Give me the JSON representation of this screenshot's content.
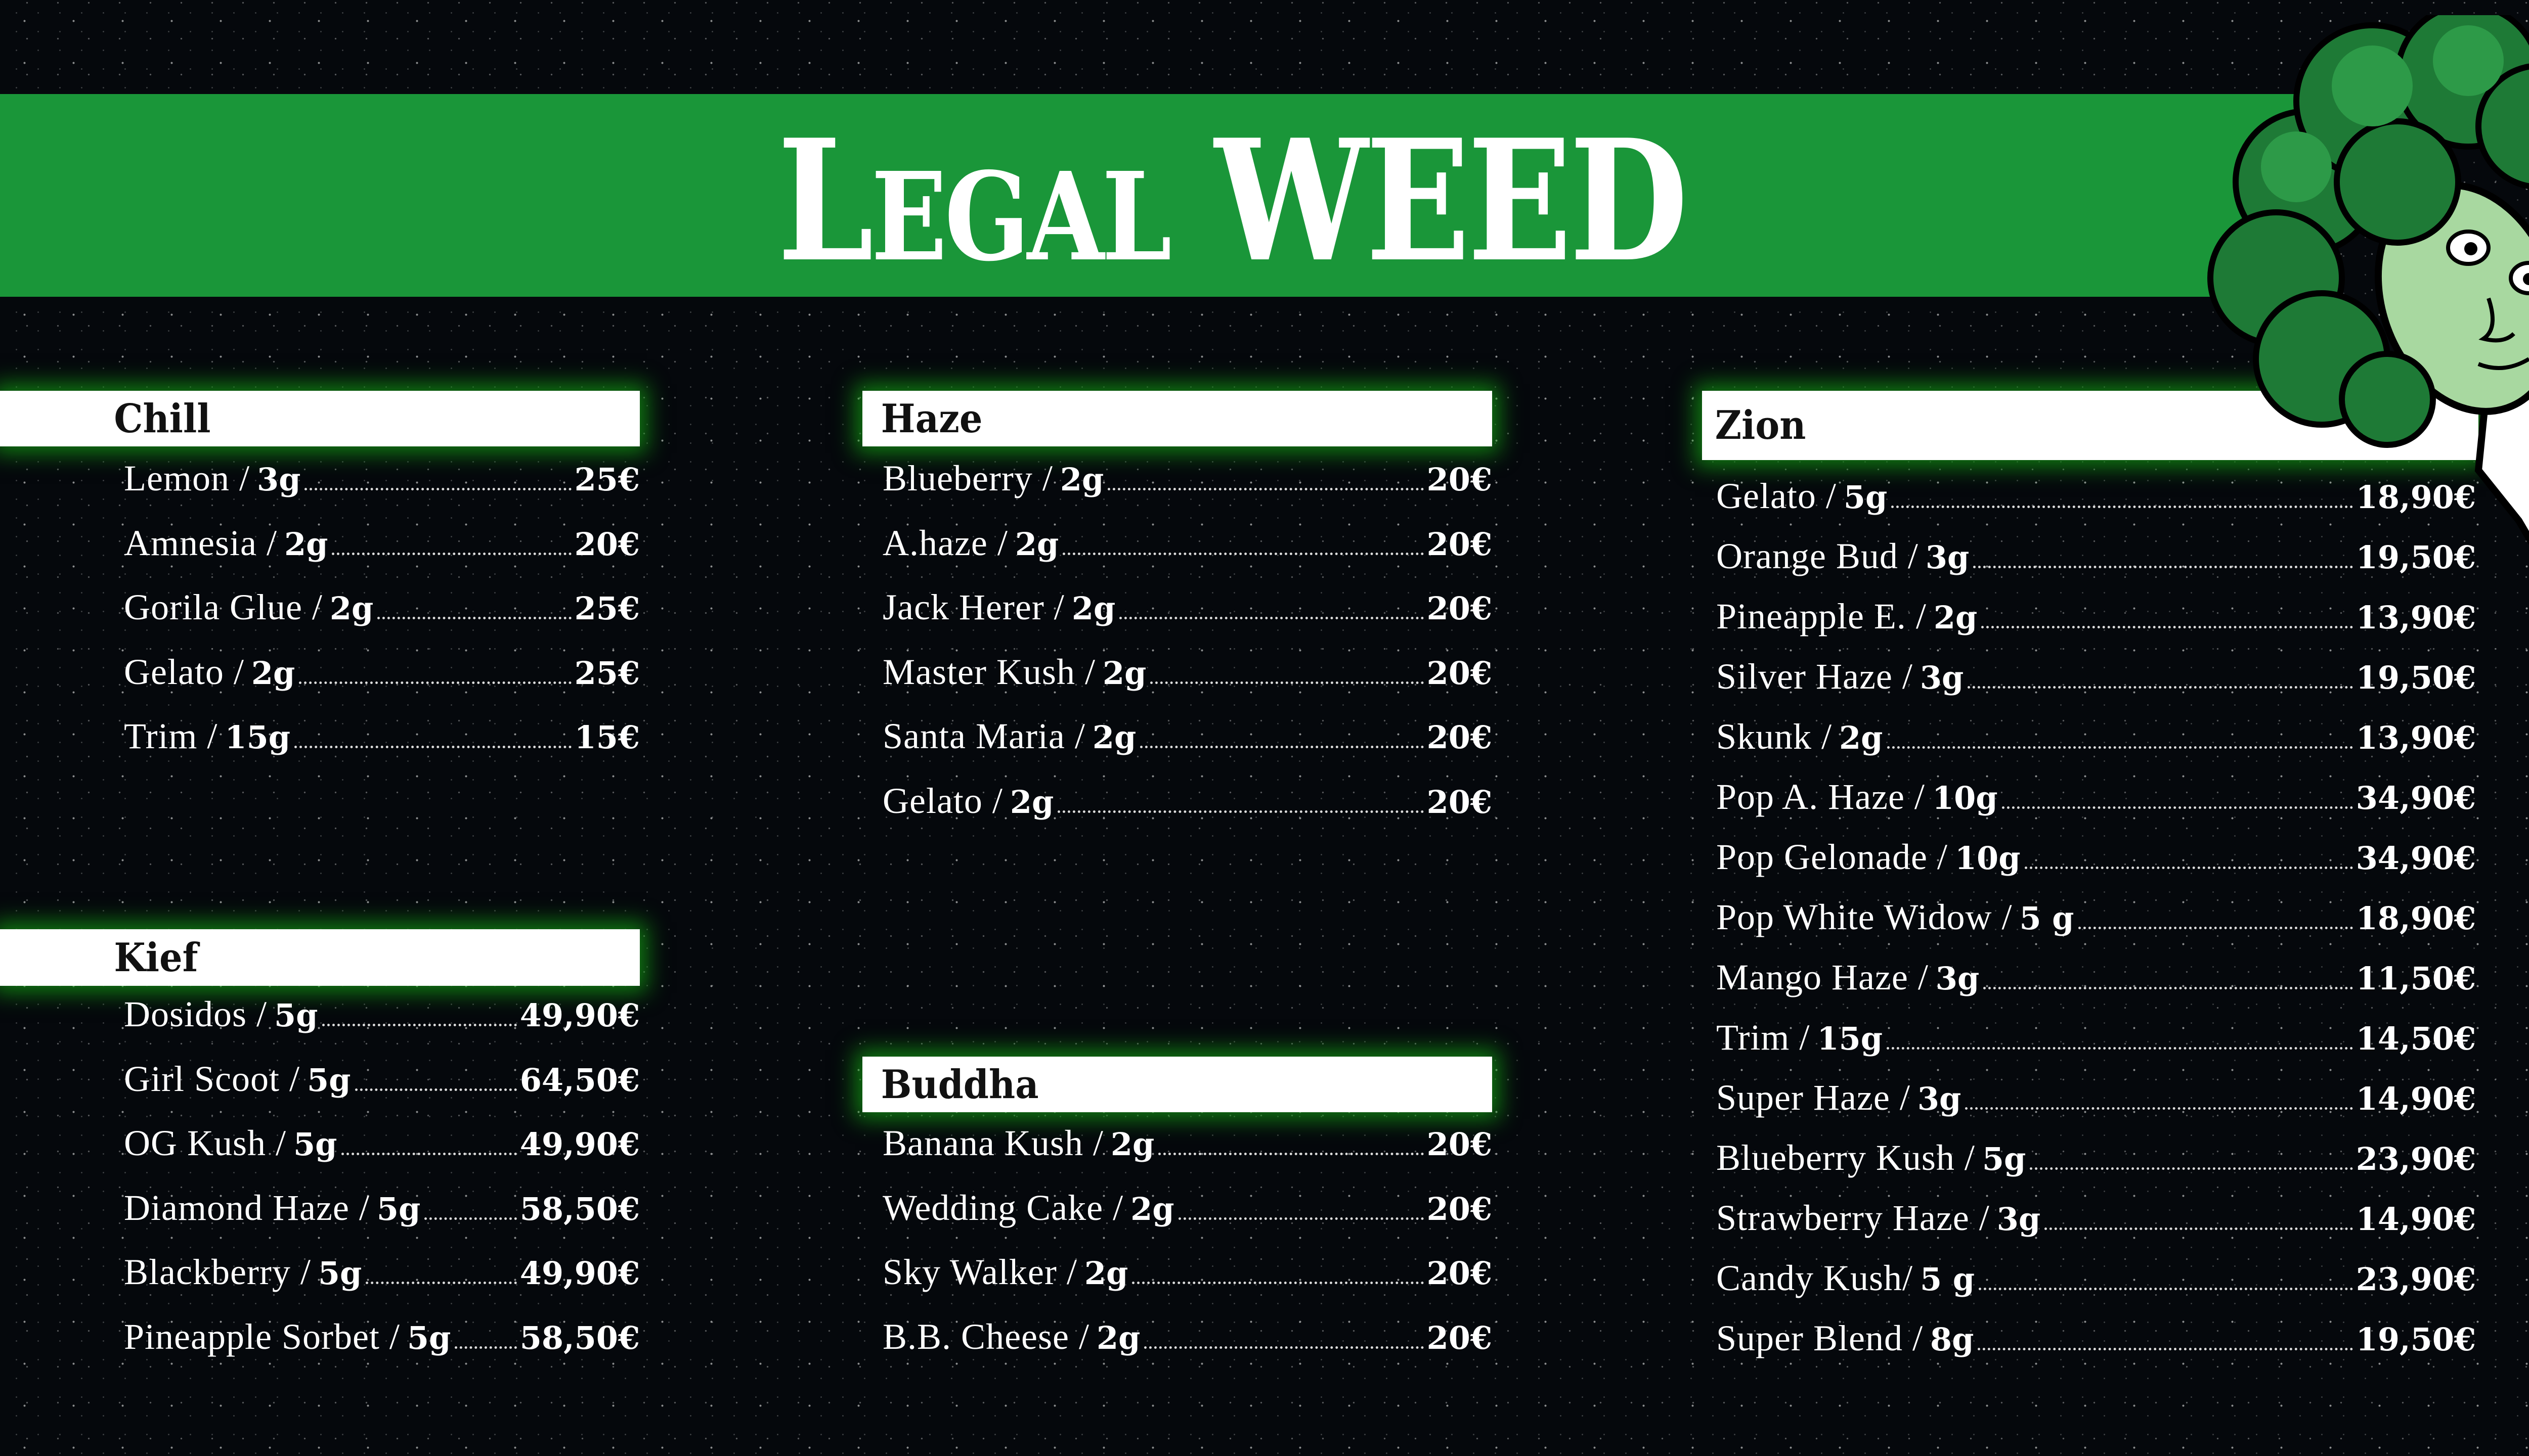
{
  "header": {
    "title_first": "L",
    "title_caps": "EGAL",
    "title_second": "WEED",
    "banner_color": "#1a9639"
  },
  "sections": {
    "chill": {
      "title": "Chill",
      "items": [
        {
          "name": "Lemon /",
          "weight": "3g",
          "price": "25€"
        },
        {
          "name": "Amnesia /",
          "weight": "2g",
          "price": "20€"
        },
        {
          "name": "Gorila Glue /",
          "weight": "2g",
          "price": "25€"
        },
        {
          "name": "Gelato /",
          "weight": "2g",
          "price": "25€"
        },
        {
          "name": "Trim /",
          "weight": "15g",
          "price": "15€"
        }
      ]
    },
    "kief": {
      "title": "Kief",
      "items": [
        {
          "name": "Dosidos /",
          "weight": "5g",
          "price": "49,90€"
        },
        {
          "name": "Girl Scoot /",
          "weight": "5g",
          "price": "64,50€"
        },
        {
          "name": "OG Kush /",
          "weight": "5g",
          "price": "49,90€"
        },
        {
          "name": "Diamond Haze /",
          "weight": "5g",
          "price": "58,50€"
        },
        {
          "name": "Blackberry /",
          "weight": "5g",
          "price": "49,90€"
        },
        {
          "name": "Pineapple Sorbet /",
          "weight": "5g",
          "price": "58,50€"
        }
      ]
    },
    "haze": {
      "title": "Haze",
      "items": [
        {
          "name": "Blueberry /",
          "weight": "2g",
          "price": "20€"
        },
        {
          "name": "A.haze /",
          "weight": "2g",
          "price": "20€"
        },
        {
          "name": "Jack Herer /",
          "weight": "2g",
          "price": "20€"
        },
        {
          "name": "Master Kush /",
          "weight": "2g",
          "price": "20€"
        },
        {
          "name": "Santa Maria /",
          "weight": "2g",
          "price": "20€"
        },
        {
          "name": "Gelato /",
          "weight": "2g",
          "price": "20€"
        }
      ]
    },
    "buddha": {
      "title": "Buddha",
      "items": [
        {
          "name": "Banana Kush /",
          "weight": "2g",
          "price": "20€"
        },
        {
          "name": "Wedding Cake /",
          "weight": "2g",
          "price": "20€"
        },
        {
          "name": "Sky Walker /",
          "weight": "2g",
          "price": "20€"
        },
        {
          "name": "B.B. Cheese /",
          "weight": "2g",
          "price": "20€"
        }
      ]
    },
    "zion": {
      "title": "Zion",
      "items": [
        {
          "name": "Gelato /",
          "weight": "5g",
          "price": "18,90€"
        },
        {
          "name": "Orange Bud /",
          "weight": "3g",
          "price": "19,50€"
        },
        {
          "name": "Pineapple E. /",
          "weight": "2g",
          "price": "13,90€"
        },
        {
          "name": "Silver Haze /",
          "weight": "3g",
          "price": "19,50€"
        },
        {
          "name": "Skunk /",
          "weight": "2g",
          "price": "13,90€"
        },
        {
          "name": "Pop A. Haze /",
          "weight": "10g",
          "price": "34,90€"
        },
        {
          "name": "Pop Gelonade /",
          "weight": "10g",
          "price": "34,90€"
        },
        {
          "name": "Pop White Widow /",
          "weight": "5 g",
          "price": "18,90€"
        },
        {
          "name": "Mango Haze /",
          "weight": "3g",
          "price": "11,50€"
        },
        {
          "name": "Trim /",
          "weight": "15g",
          "price": "14,50€"
        },
        {
          "name": "Super Haze /",
          "weight": "3g",
          "price": "14,90€"
        },
        {
          "name": "Blueberry Kush /",
          "weight": "5g",
          "price": "23,90€"
        },
        {
          "name": "Strawberry Haze /",
          "weight": "3g",
          "price": "14,90€"
        },
        {
          "name": "Candy Kush/",
          "weight": "5 g",
          "price": "23,90€"
        },
        {
          "name": "Super Blend /",
          "weight": "8g",
          "price": "19,50€"
        }
      ]
    }
  },
  "mascot": {
    "icon": "broccoli-character-icon"
  }
}
